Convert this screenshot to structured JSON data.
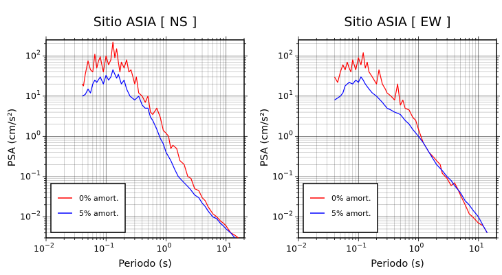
{
  "chart_data": [
    {
      "type": "line",
      "title": "Sitio ASIA [ NS ]",
      "xlabel": "Periodo (s)",
      "ylabel": "PSA (cm/s²)",
      "xscale": "log",
      "yscale": "log",
      "xlim": [
        0.01,
        20
      ],
      "ylim": [
        0.003,
        250
      ],
      "grid": true,
      "legend_position": "bottom-left",
      "xticks": [
        {
          "base": "10",
          "exp": "−2",
          "v": 0.01
        },
        {
          "base": "10",
          "exp": "−1",
          "v": 0.1
        },
        {
          "base": "10",
          "exp": "0",
          "v": 1
        },
        {
          "base": "10",
          "exp": "1",
          "v": 10
        }
      ],
      "yticks": [
        {
          "base": "10",
          "exp": "−2",
          "v": 0.01
        },
        {
          "base": "10",
          "exp": "−1",
          "v": 0.1
        },
        {
          "base": "10",
          "exp": "0",
          "v": 1
        },
        {
          "base": "10",
          "exp": "1",
          "v": 10
        },
        {
          "base": "10",
          "exp": "2",
          "v": 100
        }
      ],
      "series": [
        {
          "name": "0% amort.",
          "color": "#ff0000",
          "x": [
            0.04,
            0.042,
            0.045,
            0.05,
            0.055,
            0.06,
            0.065,
            0.07,
            0.075,
            0.08,
            0.085,
            0.09,
            0.1,
            0.11,
            0.12,
            0.13,
            0.14,
            0.15,
            0.16,
            0.17,
            0.18,
            0.2,
            0.22,
            0.24,
            0.26,
            0.28,
            0.3,
            0.32,
            0.35,
            0.4,
            0.45,
            0.5,
            0.55,
            0.6,
            0.7,
            0.8,
            0.9,
            1.0,
            1.1,
            1.2,
            1.3,
            1.5,
            1.7,
            2.0,
            2.3,
            2.6,
            3.0,
            3.5,
            4.0,
            4.5,
            5.0,
            6.0,
            7.0,
            8.0,
            9.0,
            10.0,
            12.0,
            14.0,
            16.0
          ],
          "y": [
            20,
            18,
            35,
            75,
            45,
            40,
            110,
            50,
            75,
            95,
            60,
            40,
            100,
            60,
            80,
            220,
            90,
            150,
            70,
            40,
            70,
            50,
            80,
            40,
            45,
            30,
            20,
            30,
            12,
            10,
            7,
            10,
            4,
            3.5,
            5,
            3,
            1.4,
            1.2,
            1.0,
            0.5,
            0.6,
            0.5,
            0.25,
            0.2,
            0.1,
            0.09,
            0.05,
            0.045,
            0.03,
            0.025,
            0.018,
            0.012,
            0.01,
            0.008,
            0.007,
            0.006,
            0.004,
            0.0035,
            0.003
          ]
        },
        {
          "name": "5% amort.",
          "color": "#0000ff",
          "x": [
            0.04,
            0.045,
            0.05,
            0.055,
            0.06,
            0.065,
            0.07,
            0.08,
            0.09,
            0.1,
            0.11,
            0.12,
            0.13,
            0.14,
            0.15,
            0.16,
            0.18,
            0.2,
            0.22,
            0.25,
            0.3,
            0.35,
            0.4,
            0.45,
            0.5,
            0.55,
            0.6,
            0.7,
            0.8,
            0.9,
            1.0,
            1.2,
            1.4,
            1.6,
            2.0,
            2.5,
            3.0,
            3.5,
            4.0,
            4.5,
            5.0,
            6.0,
            7.0,
            8.0,
            9.0,
            10.0,
            12.0,
            14.0
          ],
          "y": [
            10,
            11,
            15,
            12,
            20,
            25,
            22,
            30,
            20,
            33,
            25,
            30,
            45,
            35,
            28,
            35,
            20,
            25,
            15,
            10,
            8,
            10,
            6,
            5,
            5,
            3,
            2.5,
            1.5,
            0.9,
            0.65,
            0.4,
            0.25,
            0.15,
            0.1,
            0.07,
            0.05,
            0.035,
            0.03,
            0.022,
            0.018,
            0.014,
            0.01,
            0.009,
            0.007,
            0.006,
            0.005,
            0.004,
            0.003
          ]
        }
      ]
    },
    {
      "type": "line",
      "title": "Sitio ASIA [ EW ]",
      "xlabel": "Periodo (s)",
      "ylabel": "PSA (cm/s²)",
      "xscale": "log",
      "yscale": "log",
      "xlim": [
        0.01,
        20
      ],
      "ylim": [
        0.003,
        250
      ],
      "grid": true,
      "legend_position": "bottom-left",
      "xticks": [
        {
          "base": "10",
          "exp": "−2",
          "v": 0.01
        },
        {
          "base": "10",
          "exp": "−1",
          "v": 0.1
        },
        {
          "base": "10",
          "exp": "0",
          "v": 1
        },
        {
          "base": "10",
          "exp": "1",
          "v": 10
        }
      ],
      "yticks": [
        {
          "base": "10",
          "exp": "−2",
          "v": 0.01
        },
        {
          "base": "10",
          "exp": "−1",
          "v": 0.1
        },
        {
          "base": "10",
          "exp": "0",
          "v": 1
        },
        {
          "base": "10",
          "exp": "1",
          "v": 10
        },
        {
          "base": "10",
          "exp": "2",
          "v": 100
        }
      ],
      "series": [
        {
          "name": "0% amort.",
          "color": "#ff0000",
          "x": [
            0.04,
            0.045,
            0.05,
            0.055,
            0.06,
            0.065,
            0.07,
            0.075,
            0.08,
            0.09,
            0.1,
            0.11,
            0.12,
            0.13,
            0.14,
            0.15,
            0.17,
            0.2,
            0.22,
            0.25,
            0.28,
            0.3,
            0.35,
            0.4,
            0.45,
            0.5,
            0.55,
            0.6,
            0.7,
            0.8,
            0.9,
            1.0,
            1.2,
            1.5,
            1.8,
            2.0,
            2.3,
            2.5,
            3.0,
            3.5,
            4.0,
            4.5,
            5.0,
            6.0,
            7.0,
            8.0,
            10.0,
            12.0,
            14.0
          ],
          "y": [
            30,
            22,
            40,
            60,
            45,
            70,
            50,
            40,
            80,
            45,
            90,
            60,
            120,
            50,
            70,
            40,
            30,
            20,
            45,
            20,
            15,
            12,
            10,
            8,
            20,
            6,
            8,
            5,
            4.5,
            3,
            2.5,
            1.5,
            0.7,
            0.4,
            0.3,
            0.25,
            0.2,
            0.12,
            0.09,
            0.06,
            0.07,
            0.05,
            0.035,
            0.02,
            0.012,
            0.01,
            0.007,
            0.006,
            0.004
          ]
        },
        {
          "name": "5% amort.",
          "color": "#0000ff",
          "x": [
            0.04,
            0.045,
            0.05,
            0.055,
            0.06,
            0.07,
            0.08,
            0.09,
            0.1,
            0.11,
            0.12,
            0.13,
            0.15,
            0.17,
            0.2,
            0.25,
            0.3,
            0.35,
            0.4,
            0.5,
            0.6,
            0.7,
            0.8,
            1.0,
            1.2,
            1.5,
            2.0,
            2.5,
            3.0,
            3.5,
            4.0,
            5.0,
            6.0,
            7.0,
            8.0,
            10.0,
            12.0,
            14.0
          ],
          "y": [
            8,
            9,
            10,
            12,
            18,
            22,
            20,
            25,
            22,
            30,
            25,
            20,
            15,
            12,
            10,
            7,
            5,
            4.5,
            4,
            3.5,
            2.5,
            2,
            1.5,
            1,
            0.7,
            0.4,
            0.2,
            0.14,
            0.1,
            0.08,
            0.06,
            0.04,
            0.025,
            0.02,
            0.015,
            0.01,
            0.006,
            0.004
          ]
        }
      ]
    }
  ]
}
